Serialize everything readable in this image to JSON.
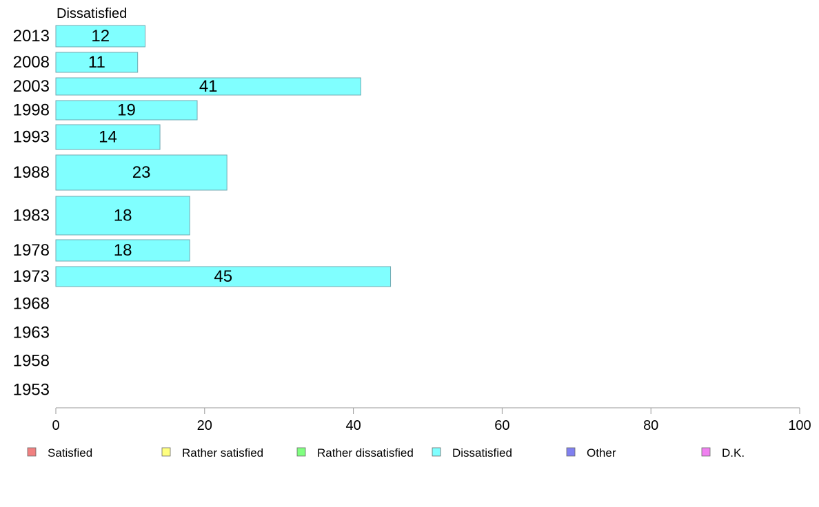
{
  "chart_data": {
    "type": "bar",
    "orientation": "horizontal",
    "title": "Dissatisfied",
    "categories": [
      "2013",
      "2008",
      "2003",
      "1998",
      "1993",
      "1988",
      "1983",
      "1978",
      "1973",
      "1968",
      "1963",
      "1958",
      "1953"
    ],
    "series": [
      {
        "name": "Dissatisfied",
        "color": "#80ffff",
        "values": [
          12,
          11,
          41,
          19,
          14,
          23,
          18,
          18,
          45,
          null,
          null,
          null,
          null
        ]
      }
    ],
    "xlim": [
      0,
      100
    ],
    "xticks": [
      "0",
      "20",
      "40",
      "60",
      "80",
      "100"
    ],
    "grid": false,
    "legend_position": "bottom",
    "legend": [
      {
        "label": "Satisfied",
        "color": "#f08080"
      },
      {
        "label": "Rather satisfied",
        "color": "#ffff80"
      },
      {
        "label": "Rather dissatisfied",
        "color": "#80ff80"
      },
      {
        "label": "Dissatisfied",
        "color": "#80ffff"
      },
      {
        "label": "Other",
        "color": "#8080f0"
      },
      {
        "label": "D.K.",
        "color": "#f080f0"
      }
    ]
  }
}
